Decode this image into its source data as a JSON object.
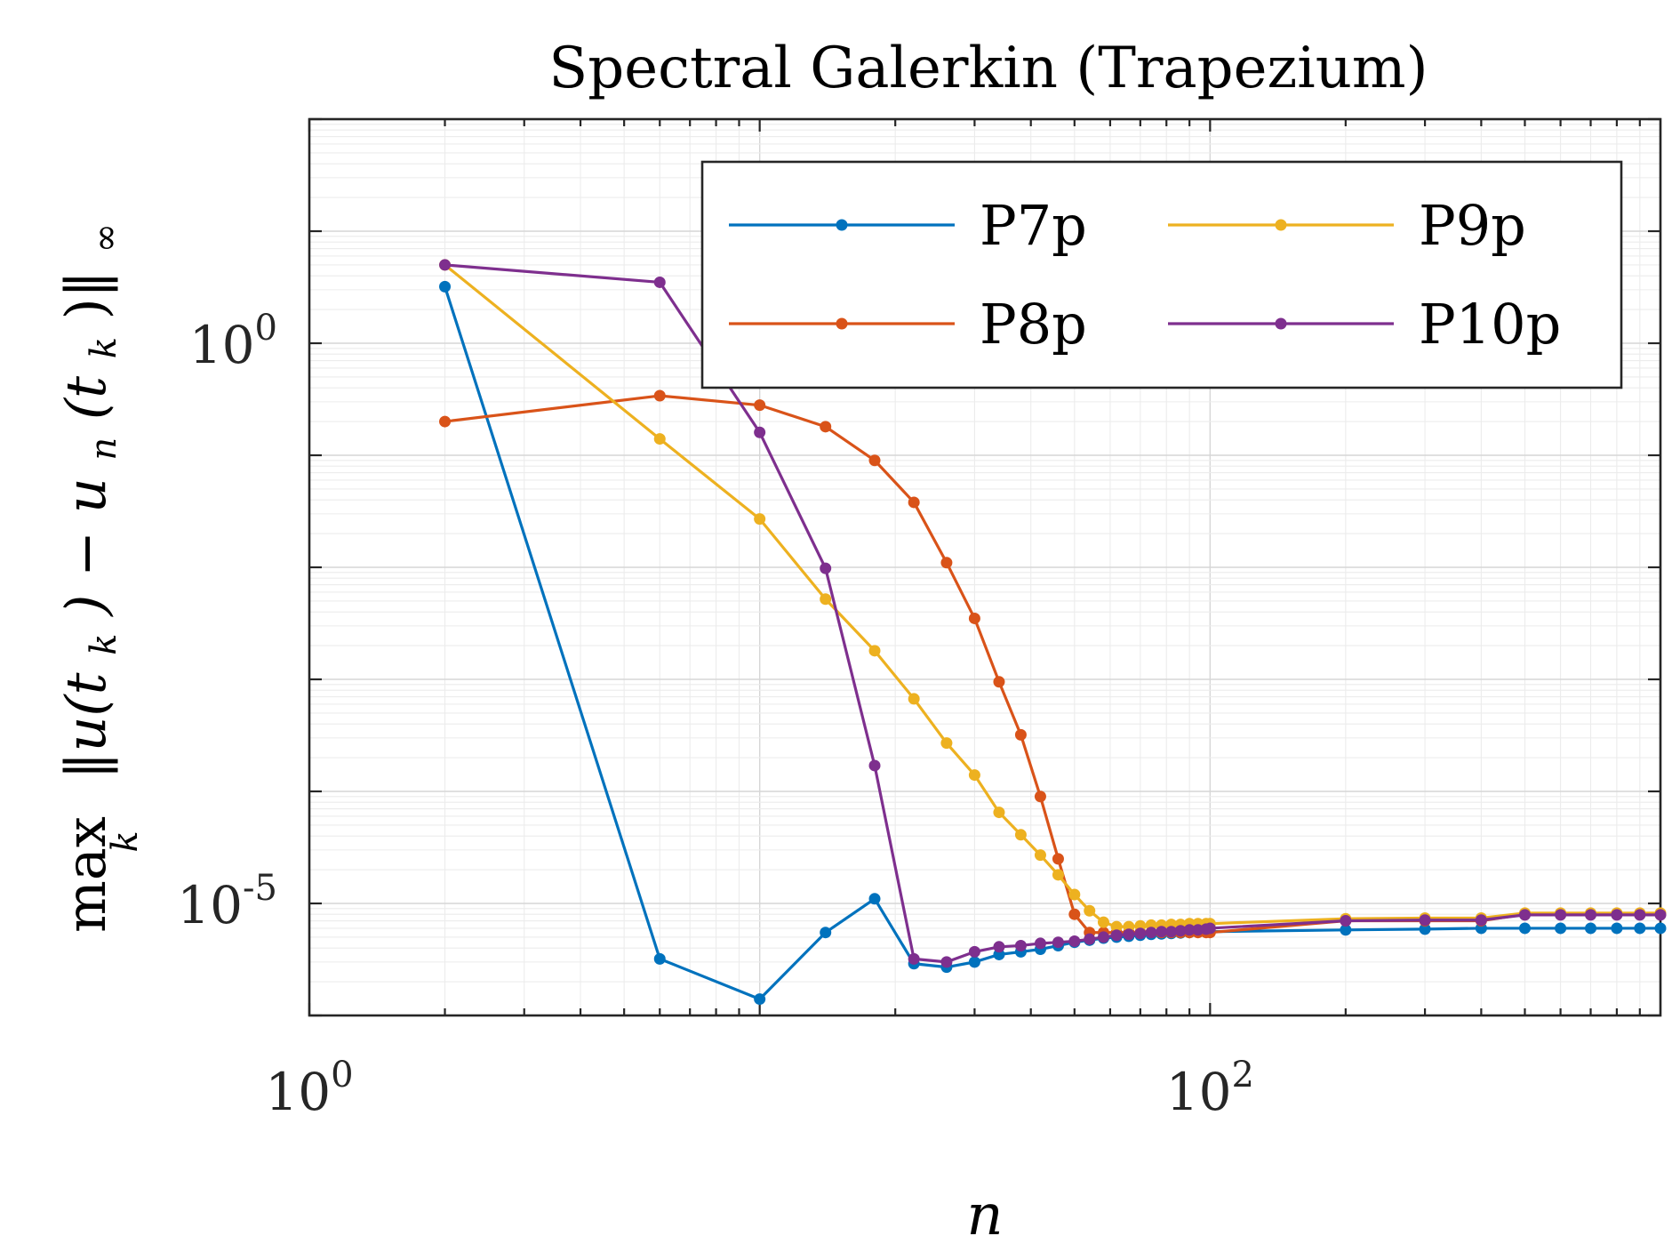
{
  "chart_data": {
    "type": "line",
    "title": "Spectral Galerkin (Trapezium)",
    "xlabel": "n",
    "ylabel_main": "max",
    "ylabel_sub": "k",
    "ylabel_norm": "‖u(t",
    "ylabel_norm_sub1": "k",
    "ylabel_mid": ") − u",
    "ylabel_norm_sub2": "n",
    "ylabel_end": "(t",
    "ylabel_norm_sub3": "k",
    "ylabel_close": ")‖",
    "ylabel_inf": "∞",
    "x_scale": "log",
    "y_scale": "log",
    "xlim": [
      1,
      1000
    ],
    "ylim": [
      1e-06,
      100
    ],
    "grid": true,
    "legend_position": "top-right",
    "x_ticks": [
      {
        "value": 1,
        "base": "10",
        "exp": "0"
      },
      {
        "value": 100,
        "base": "10",
        "exp": "2"
      }
    ],
    "y_ticks": [
      {
        "value": 1,
        "base": "10",
        "exp": "0"
      },
      {
        "value": 1e-05,
        "base": "10",
        "exp": "-5"
      }
    ],
    "series": [
      {
        "name": "P7p",
        "color": "#0072BD",
        "x": [
          2,
          6,
          10,
          14,
          18,
          22,
          26,
          30,
          34,
          38,
          42,
          46,
          50,
          54,
          58,
          62,
          66,
          70,
          74,
          78,
          82,
          86,
          90,
          94,
          98,
          100,
          200,
          300,
          400,
          500,
          600,
          700,
          800,
          900,
          1000
        ],
        "y": [
          3.2,
          3.2e-06,
          1.4e-06,
          5.5e-06,
          1.1e-05,
          2.9e-06,
          2.7e-06,
          3e-06,
          3.5e-06,
          3.7e-06,
          3.9e-06,
          4.2e-06,
          4.5e-06,
          4.7e-06,
          4.9e-06,
          5e-06,
          5.1e-06,
          5.2e-06,
          5.3e-06,
          5.35e-06,
          5.4e-06,
          5.45e-06,
          5.5e-06,
          5.55e-06,
          5.6e-06,
          5.6e-06,
          5.8e-06,
          5.9e-06,
          6e-06,
          6e-06,
          6e-06,
          6e-06,
          6e-06,
          6e-06,
          6e-06
        ]
      },
      {
        "name": "P8p",
        "color": "#D95319",
        "x": [
          2,
          6,
          10,
          14,
          18,
          22,
          26,
          30,
          34,
          38,
          42,
          46,
          50,
          54,
          58,
          62,
          66,
          70,
          74,
          78,
          82,
          86,
          90,
          94,
          98,
          100,
          200,
          300,
          400,
          500,
          600,
          700,
          800,
          900,
          1000
        ],
        "y": [
          0.2,
          0.34,
          0.28,
          0.18,
          0.09,
          0.038,
          0.011,
          0.0035,
          0.00095,
          0.00032,
          9e-05,
          2.5e-05,
          8e-06,
          5.5e-06,
          5.5e-06,
          5.5e-06,
          5.5e-06,
          5.5e-06,
          5.5e-06,
          5.5e-06,
          5.5e-06,
          5.5e-06,
          5.5e-06,
          5.5e-06,
          5.5e-06,
          5.5e-06,
          7e-06,
          7e-06,
          7e-06,
          8e-06,
          8e-06,
          8e-06,
          8e-06,
          8e-06,
          8e-06
        ]
      },
      {
        "name": "P9p",
        "color": "#EDB120",
        "x": [
          2,
          6,
          10,
          14,
          18,
          22,
          26,
          30,
          34,
          38,
          42,
          46,
          50,
          54,
          58,
          62,
          66,
          70,
          74,
          78,
          82,
          86,
          90,
          94,
          98,
          100,
          200,
          300,
          400,
          500,
          600,
          700,
          800,
          900,
          1000
        ],
        "y": [
          5.0,
          0.14,
          0.027,
          0.0052,
          0.0018,
          0.00067,
          0.00027,
          0.00014,
          6.5e-05,
          4.1e-05,
          2.7e-05,
          1.8e-05,
          1.2e-05,
          8.6e-06,
          6.8e-06,
          6.2e-06,
          6.2e-06,
          6.3e-06,
          6.4e-06,
          6.4e-06,
          6.5e-06,
          6.5e-06,
          6.6e-06,
          6.6e-06,
          6.6e-06,
          6.6e-06,
          7.3e-06,
          7.4e-06,
          7.4e-06,
          8.2e-06,
          8.2e-06,
          8.2e-06,
          8.2e-06,
          8.2e-06,
          8.2e-06
        ]
      },
      {
        "name": "P10p",
        "color": "#7E2F8E",
        "x": [
          2,
          6,
          10,
          14,
          18,
          22,
          26,
          30,
          34,
          38,
          42,
          46,
          50,
          54,
          58,
          62,
          66,
          70,
          74,
          78,
          82,
          86,
          90,
          94,
          98,
          100,
          200,
          300,
          400,
          500,
          600,
          700,
          800,
          900,
          1000
        ],
        "y": [
          5.0,
          3.5,
          0.16,
          0.0098,
          0.00017,
          3.2e-06,
          3e-06,
          3.7e-06,
          4.1e-06,
          4.2e-06,
          4.4e-06,
          4.5e-06,
          4.6e-06,
          4.8e-06,
          5e-06,
          5.2e-06,
          5.3e-06,
          5.4e-06,
          5.5e-06,
          5.6e-06,
          5.6e-06,
          5.7e-06,
          5.8e-06,
          5.8e-06,
          5.9e-06,
          6e-06,
          7e-06,
          7.1e-06,
          7.1e-06,
          7.9e-06,
          7.9e-06,
          7.9e-06,
          7.9e-06,
          7.9e-06,
          7.9e-06
        ]
      }
    ]
  }
}
